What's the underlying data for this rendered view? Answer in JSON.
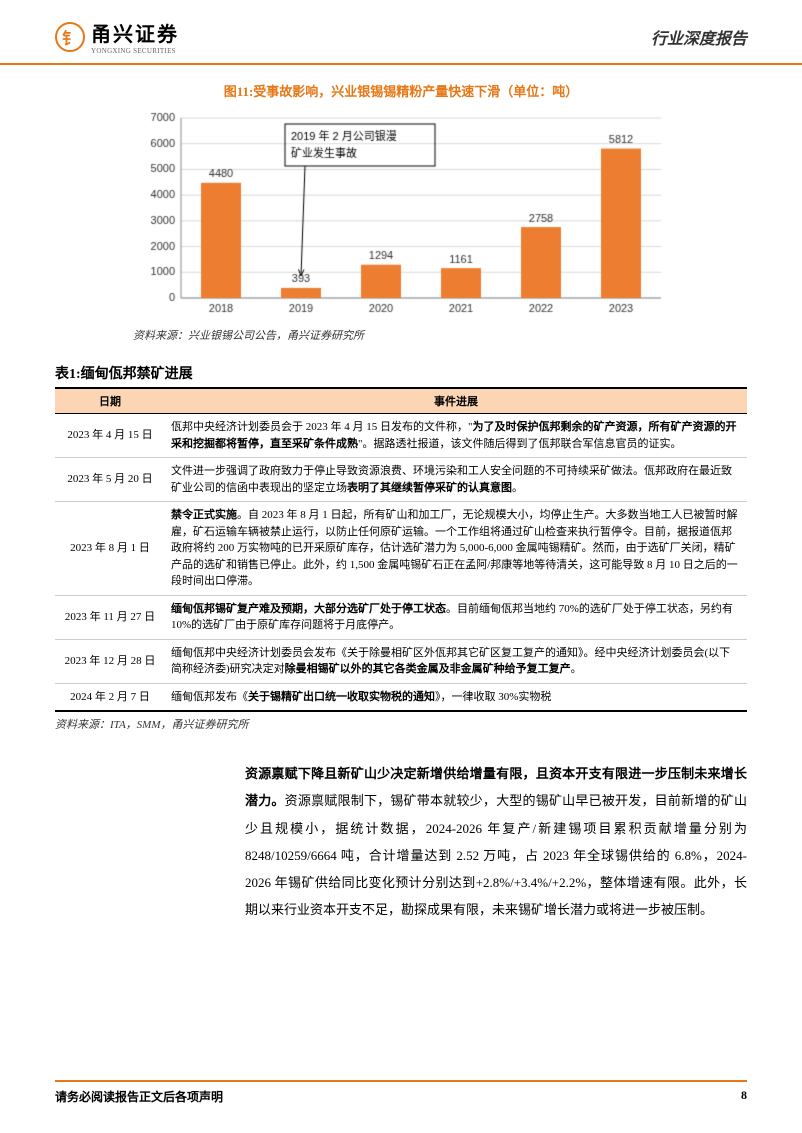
{
  "header": {
    "logo_char": "钅",
    "logo_ch": "甬兴证券",
    "logo_en": "YONGXING SECURITIES",
    "title": "行业深度报告"
  },
  "chart": {
    "type": "bar",
    "title": "图11:受事故影响，兴业银锡锡精粉产量快速下滑（单位：吨）",
    "categories": [
      "2018",
      "2019",
      "2020",
      "2021",
      "2022",
      "2023"
    ],
    "values": [
      4480,
      393,
      1294,
      1161,
      2758,
      5812
    ],
    "bar_color": "#ed7d31",
    "ylim": [
      0,
      7000
    ],
    "ytick_step": 1000,
    "grid_color": "#d9d9d9",
    "axis_color": "#888888",
    "label_fontsize": 11,
    "callout": {
      "text": "2019 年 2 月公司银漫矿业发生事故",
      "border_color": "#000000",
      "target_index": 1
    },
    "source": "资料来源：兴业银锡公司公告，甬兴证券研究所"
  },
  "table": {
    "title": "表1:缅甸佤邦禁矿进展",
    "header_bg": "#fcd5b4",
    "columns": [
      "日期",
      "事件进展"
    ],
    "rows": [
      {
        "date": "2023 年 4 月 15 日",
        "content": "佤邦中央经济计划委员会于 2023 年 4 月 15 日发布的文件称，\"<b>为了及时保护佤邦剩余的矿产资源，所有矿产资源的开采和挖掘都将暂停，直至采矿条件成熟</b>\"。据路透社报道，该文件随后得到了佤邦联合军信息官员的证实。"
      },
      {
        "date": "2023 年 5 月 20 日",
        "content": "文件进一步强调了政府致力于停止导致资源浪费、环境污染和工人安全问题的不可持续采矿做法。佤邦政府在最近致矿业公司的信函中表现出的坚定立场<b>表明了其继续暂停采矿的认真意图</b>。"
      },
      {
        "date": "2023 年 8 月 1 日",
        "content": "<b>禁令正式实施</b>。自 2023 年 8 月 1 日起，所有矿山和加工厂，无论规模大小，均停止生产。大多数当地工人已被暂时解雇，矿石运输车辆被禁止运行，以防止任何原矿运输。一个工作组将通过矿山检查来执行暂停令。目前，据报道佤邦政府将约 200 万实物吨的已开采原矿库存，估计选矿潜力为 5,000-6,000 金属吨锡精矿。然而，由于选矿厂关闭，精矿产品的选矿和销售已停止。此外，约 1,500 金属吨锡矿石正在孟阿/邦康等地等待清关，这可能导致 8 月 10 日之后的一段时间出口停滞。"
      },
      {
        "date": "2023 年 11 月 27 日",
        "content": "<b>缅甸佤邦锡矿复产难及预期，大部分选矿厂处于停工状态</b>。目前缅甸佤邦当地约 70%的选矿厂处于停工状态，另约有 10%的选矿厂由于原矿库存问题将于月底停产。"
      },
      {
        "date": "2023 年 12 月 28 日",
        "content": "缅甸佤邦中央经济计划委员会发布《关于除曼相矿区外佤邦其它矿区复工复产的通知》。经中央经济计划委员会(以下简称经济委)研究决定对<b>除曼相锡矿以外的其它各类金属及非金属矿种给予复工复产</b>。"
      },
      {
        "date": "2024 年 2 月 7 日",
        "content": "缅甸佤邦发布《<b>关于锡精矿出口统一收取实物税的通知</b>》，一律收取 30%实物税"
      }
    ],
    "source": "资料来源：ITA，SMM，甬兴证券研究所"
  },
  "body": {
    "text": "<span class=\"first-line\"><b>资源禀赋下降且新矿山少决定新增供给增量有限，且资本开支有限进一步压制未来增长潜力。</b>资源禀赋限制下，锡矿带本就较少，大型的锡矿山</span>早已被开发，目前新增的矿山少且规模小，据统计数据，2024-2026 年复产/新建锡项目累积贡献增量分别为 8248/10259/6664 吨，合计增量达到 2.52 万吨，占 2023 年全球锡供给的 6.8%，2024-2026 年锡矿供给同比变化预计分别达到+2.8%/+3.4%/+2.2%，整体增速有限。此外，长期以来行业资本开支不足，勘探成果有限，未来锡矿增长潜力或将进一步被压制。"
  },
  "footer": {
    "text": "请务必阅读报告正文后各项声明",
    "page": "8"
  }
}
